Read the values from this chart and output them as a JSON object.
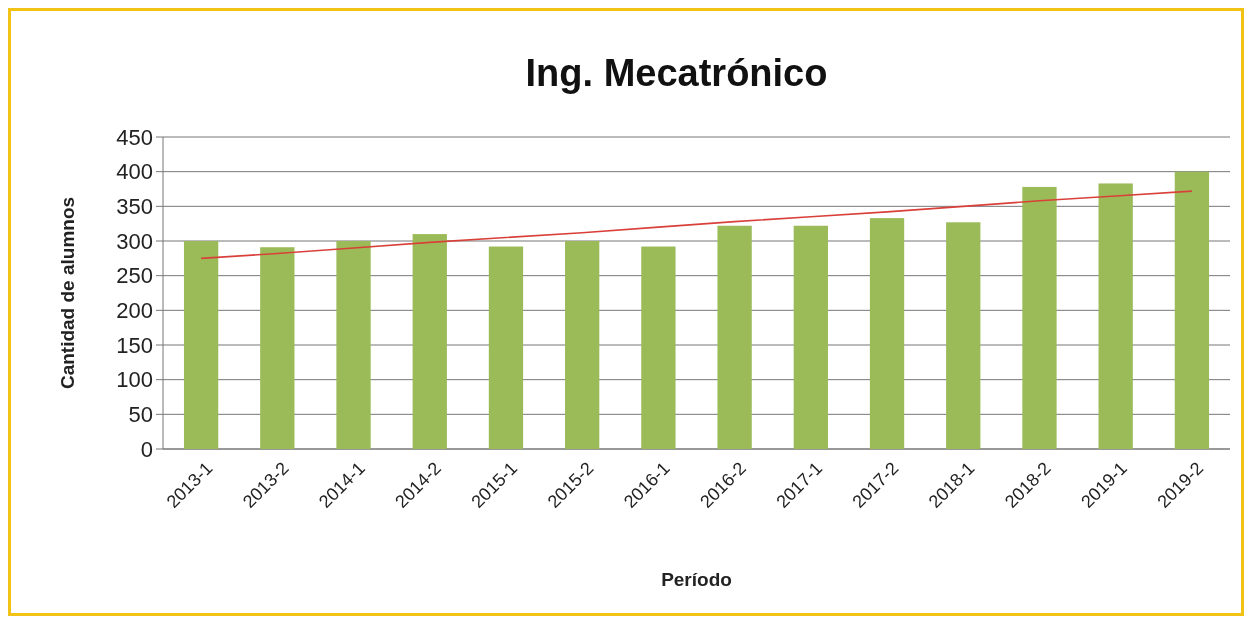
{
  "chart_data": {
    "type": "bar",
    "title": "Ing. Mecatrónico",
    "xlabel": "Período",
    "ylabel": "Cantidad de alumnos",
    "categories": [
      "2013-1",
      "2013-2",
      "2014-1",
      "2014-2",
      "2015-1",
      "2015-2",
      "2016-1",
      "2016-2",
      "2017-1",
      "2017-2",
      "2018-1",
      "2018-2",
      "2019-1",
      "2019-2"
    ],
    "series": [
      {
        "color": "#9bbb59",
        "values": [
          300,
          291,
          300,
          310,
          292,
          300,
          292,
          322,
          322,
          333,
          327,
          378,
          383,
          400
        ]
      },
      {
        "type": "line",
        "color": "#d9403a",
        "values": [
          275,
          282,
          290,
          298,
          305,
          312,
          320,
          328,
          335,
          342,
          350,
          358,
          365,
          372
        ]
      }
    ],
    "ylim": [
      0,
      450
    ],
    "yticks": [
      0,
      50,
      100,
      150,
      200,
      250,
      300,
      350,
      400,
      450
    ],
    "grid": "y",
    "marker": "none",
    "line_style": "solid"
  }
}
